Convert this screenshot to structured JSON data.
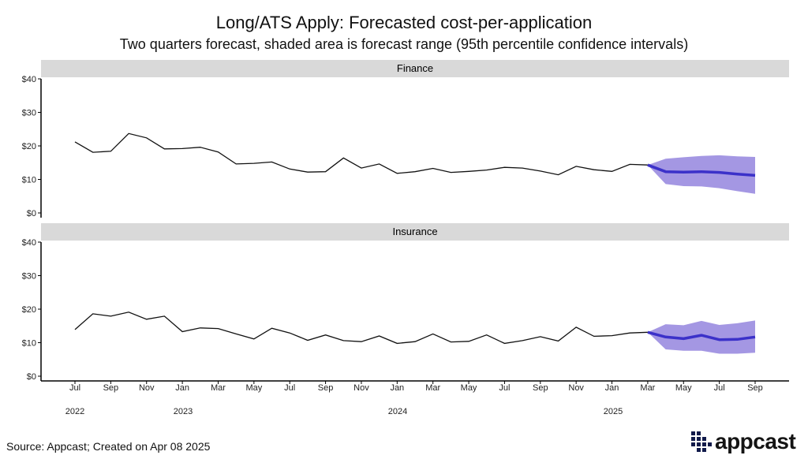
{
  "title": "Long/ATS Apply: Forecasted cost-per-application",
  "subtitle": "Two quarters forecast, shaded area is forecast range (95th percentile confidence intervals)",
  "source": "Source: Appcast; Created on Apr 08 2025",
  "logo": {
    "text": "appcast",
    "icon": "appcast-grid-icon"
  },
  "colors": {
    "history": "#111111",
    "forecast": "#3b31c9",
    "band": "#9a8ce0",
    "strip": "#d9d9d9"
  },
  "chart_data": [
    {
      "type": "line",
      "panel": "Finance",
      "x_ticks": [
        "Jul",
        "Sep",
        "Nov",
        "Jan",
        "Mar",
        "May",
        "Jul",
        "Sep",
        "Nov",
        "Jan",
        "Mar",
        "May",
        "Jul",
        "Sep",
        "Nov",
        "Jan",
        "Mar",
        "May",
        "Jul",
        "Sep"
      ],
      "x_ticks_start": "2022-07",
      "x_tick_interval_months": 2,
      "year_labels": [
        "2022",
        "2023",
        "2024",
        "2025"
      ],
      "ylim": [
        0,
        40
      ],
      "y_ticks": [
        "$0",
        "$10",
        "$20",
        "$30",
        "$40"
      ],
      "history": {
        "x": [
          "2022-07",
          "2022-08",
          "2022-09",
          "2022-10",
          "2022-11",
          "2022-12",
          "2023-01",
          "2023-02",
          "2023-03",
          "2023-04",
          "2023-05",
          "2023-06",
          "2023-07",
          "2023-08",
          "2023-09",
          "2023-10",
          "2023-11",
          "2023-12",
          "2024-01",
          "2024-02",
          "2024-03",
          "2024-04",
          "2024-05",
          "2024-06",
          "2024-07",
          "2024-08",
          "2024-09",
          "2024-10",
          "2024-11",
          "2024-12",
          "2025-01",
          "2025-02",
          "2025-03"
        ],
        "y": [
          21.2,
          18.1,
          18.4,
          23.7,
          22.4,
          19.1,
          19.2,
          19.6,
          18.2,
          14.6,
          14.8,
          15.2,
          13.1,
          12.2,
          12.3,
          16.4,
          13.4,
          14.6,
          11.8,
          12.3,
          13.3,
          12.1,
          12.4,
          12.8,
          13.6,
          13.4,
          12.5,
          11.4,
          13.9,
          12.9,
          12.4,
          14.5,
          14.3
        ]
      },
      "forecast": {
        "x": [
          "2025-03",
          "2025-04",
          "2025-05",
          "2025-06",
          "2025-07",
          "2025-08",
          "2025-09"
        ],
        "y": [
          14.3,
          12.3,
          12.2,
          12.3,
          12.1,
          11.6,
          11.2
        ],
        "lower": [
          14.3,
          8.6,
          8.0,
          7.9,
          7.4,
          6.5,
          5.7
        ],
        "upper": [
          14.3,
          16.2,
          16.6,
          17.0,
          17.2,
          16.9,
          16.7
        ]
      }
    },
    {
      "type": "line",
      "panel": "Insurance",
      "x_ticks": [
        "Jul",
        "Sep",
        "Nov",
        "Jan",
        "Mar",
        "May",
        "Jul",
        "Sep",
        "Nov",
        "Jan",
        "Mar",
        "May",
        "Jul",
        "Sep",
        "Nov",
        "Jan",
        "Mar",
        "May",
        "Jul",
        "Sep"
      ],
      "x_ticks_start": "2022-07",
      "x_tick_interval_months": 2,
      "year_labels": [
        "2022",
        "2023",
        "2024",
        "2025"
      ],
      "ylim": [
        0,
        40
      ],
      "y_ticks": [
        "$0",
        "$10",
        "$20",
        "$30",
        "$40"
      ],
      "history": {
        "x": [
          "2022-07",
          "2022-08",
          "2022-09",
          "2022-10",
          "2022-11",
          "2022-12",
          "2023-01",
          "2023-02",
          "2023-03",
          "2023-04",
          "2023-05",
          "2023-06",
          "2023-07",
          "2023-08",
          "2023-09",
          "2023-10",
          "2023-11",
          "2023-12",
          "2024-01",
          "2024-02",
          "2024-03",
          "2024-04",
          "2024-05",
          "2024-06",
          "2024-07",
          "2024-08",
          "2024-09",
          "2024-10",
          "2024-11",
          "2024-12",
          "2025-01",
          "2025-02",
          "2025-03"
        ],
        "y": [
          13.9,
          18.6,
          17.9,
          19.1,
          17.0,
          17.9,
          13.3,
          14.4,
          14.2,
          12.6,
          11.1,
          14.3,
          12.9,
          10.7,
          12.3,
          10.6,
          10.3,
          12.0,
          9.8,
          10.3,
          12.6,
          10.2,
          10.4,
          12.3,
          9.8,
          10.6,
          11.8,
          10.5,
          14.6,
          11.9,
          12.1,
          12.9,
          13.1
        ]
      },
      "forecast": {
        "x": [
          "2025-03",
          "2025-04",
          "2025-05",
          "2025-06",
          "2025-07",
          "2025-08",
          "2025-09"
        ],
        "y": [
          13.1,
          11.7,
          11.2,
          12.2,
          10.9,
          11.0,
          11.7
        ],
        "lower": [
          13.1,
          8.0,
          7.6,
          7.6,
          6.7,
          6.7,
          7.0
        ],
        "upper": [
          13.1,
          15.5,
          15.2,
          16.5,
          15.3,
          15.8,
          16.6
        ]
      }
    }
  ]
}
